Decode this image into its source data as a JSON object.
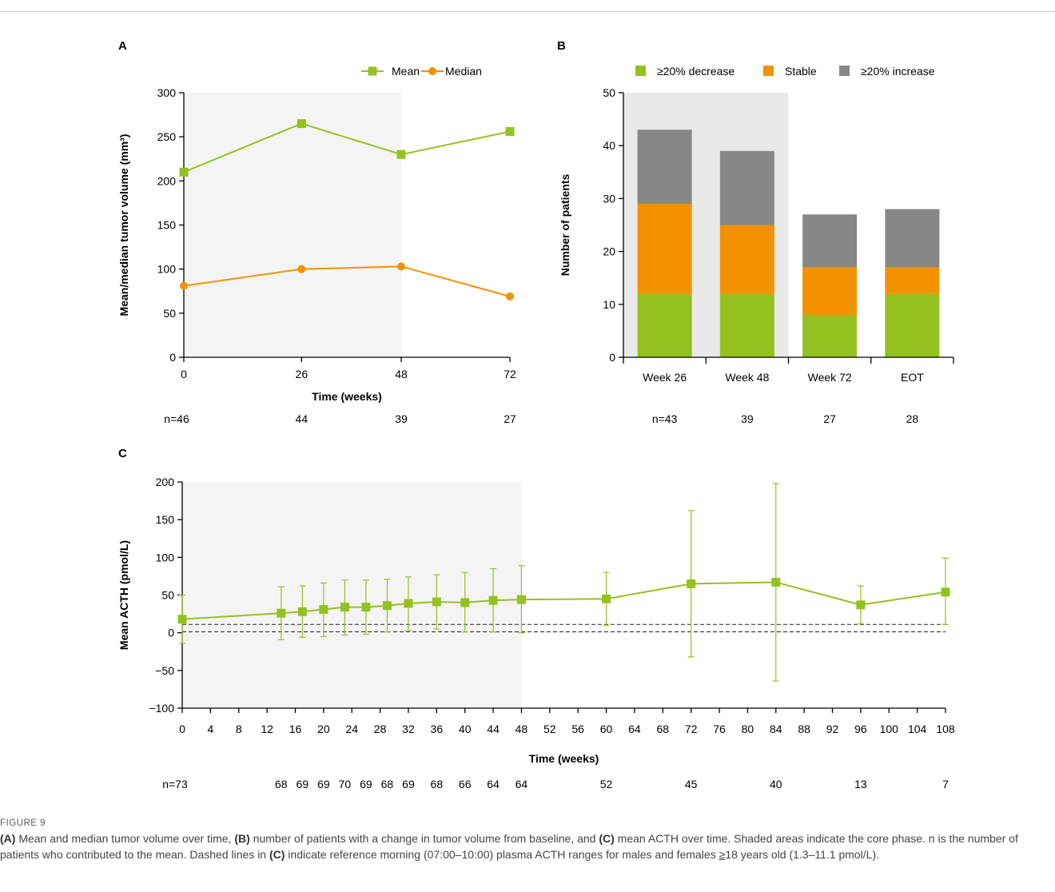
{
  "colors": {
    "green": "#94c11f",
    "orange": "#f39200",
    "gray": "#878787",
    "shade_light": "#f4f4f4",
    "shade_dark": "#e9e9e9"
  },
  "chart_data": [
    {
      "panel": "A",
      "type": "line",
      "x": [
        0,
        26,
        48,
        72
      ],
      "x_ticks": [
        "0",
        "26",
        "48",
        "72"
      ],
      "series": [
        {
          "name": "Mean",
          "marker": "square",
          "color": "#94c11f",
          "values": [
            210,
            265,
            230,
            256
          ]
        },
        {
          "name": "Median",
          "marker": "circle",
          "color": "#f39200",
          "values": [
            81,
            100,
            103,
            69
          ]
        }
      ],
      "xlabel": "Time (weeks)",
      "ylabel": "Mean/median tumor volume (mm³)",
      "xlim": [
        0,
        72
      ],
      "ylim": [
        0,
        300
      ],
      "y_ticks": [
        "0",
        "50",
        "100",
        "150",
        "200",
        "250",
        "300"
      ],
      "shaded_until_x": 48,
      "n_labels": [
        "n=46",
        "44",
        "39",
        "27"
      ],
      "legend": "top-right",
      "grid": false
    },
    {
      "panel": "B",
      "type": "bar",
      "stacked": true,
      "categories": [
        "Week 26",
        "Week 48",
        "Week 72",
        "EOT"
      ],
      "series": [
        {
          "name": "≥20% decrease",
          "color": "#94c11f",
          "values": [
            12,
            12,
            8,
            12
          ]
        },
        {
          "name": "Stable",
          "color": "#f39200",
          "values": [
            17,
            13,
            9,
            5
          ]
        },
        {
          "name": "≥20% increase",
          "color": "#878787",
          "values": [
            14,
            14,
            10,
            11
          ]
        }
      ],
      "ylabel": "Number of patients",
      "ylim": [
        0,
        50
      ],
      "y_ticks": [
        "0",
        "10",
        "20",
        "30",
        "40",
        "50"
      ],
      "shaded_categories": [
        "Week 26",
        "Week 48"
      ],
      "n_labels": [
        "n=43",
        "39",
        "27",
        "28"
      ],
      "legend": "top",
      "grid": false
    },
    {
      "panel": "C",
      "type": "line",
      "x": [
        0,
        14,
        17,
        20,
        23,
        26,
        29,
        32,
        36,
        40,
        44,
        48,
        60,
        72,
        84,
        96,
        108
      ],
      "series": [
        {
          "name": "",
          "marker": "square",
          "color": "#94c11f",
          "values": [
            18,
            26,
            28,
            31,
            34,
            34,
            36,
            39,
            41,
            40,
            43,
            44,
            45,
            65,
            67,
            37,
            54
          ],
          "error_low": [
            -14,
            -9,
            -6,
            -5,
            -3,
            -2,
            1,
            3,
            5,
            1,
            1,
            0,
            10,
            -32,
            -64,
            12,
            11
          ],
          "error_high": [
            50,
            61,
            62,
            66,
            70,
            70,
            71,
            74,
            77,
            80,
            85,
            89,
            80,
            162,
            198,
            62,
            99
          ]
        }
      ],
      "reference_lines": [
        1.3,
        11.1
      ],
      "xlabel": "Time (weeks)",
      "ylabel": "Mean ACTH (pmol/L)",
      "xlim": [
        0,
        108
      ],
      "ylim": [
        -100,
        200
      ],
      "x_ticks": [
        "0",
        "4",
        "8",
        "12",
        "16",
        "20",
        "24",
        "28",
        "32",
        "36",
        "40",
        "44",
        "48",
        "52",
        "56",
        "60",
        "64",
        "68",
        "72",
        "76",
        "80",
        "84",
        "88",
        "92",
        "96",
        "100",
        "104",
        "108"
      ],
      "y_ticks": [
        "−100",
        "−50",
        "0",
        "50",
        "100",
        "150",
        "200"
      ],
      "shaded_until_x": 48,
      "n_labels": [
        "n=73",
        "68",
        "69",
        "69",
        "70",
        "69",
        "68",
        "69",
        "68",
        "66",
        "64",
        "64",
        "52",
        "45",
        "40",
        "13",
        "7"
      ],
      "grid": false
    }
  ],
  "caption": {
    "label": "FIGURE 9",
    "panel_a": "(A)",
    "text_a": " Mean and median tumor volume over time, ",
    "panel_b": "(B)",
    "text_b": " number of patients with a change in tumor volume from baseline, and ",
    "panel_c": "(C)",
    "text_c": " mean ACTH over time. Shaded areas indicate the core phase. n is the number of patients who contributed to the mean. Dashed lines in ",
    "panel_c2": "(C)",
    "text_d": " indicate reference morning (07:00–10:00) plasma ACTH ranges for males and females ",
    "geq": "≥",
    "text_e": "18 years old (1.3–11.1 pmol/L)."
  }
}
